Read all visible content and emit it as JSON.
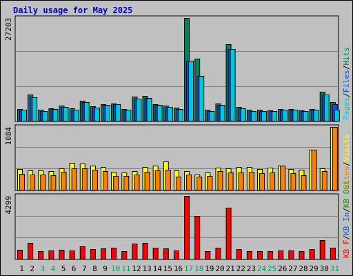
{
  "chart_data": {
    "type": "bar",
    "title": "Daily usage for May 2025",
    "categories": [
      "1",
      "2",
      "3",
      "4",
      "5",
      "6",
      "7",
      "8",
      "9",
      "10",
      "11",
      "12",
      "13",
      "14",
      "15",
      "16",
      "17",
      "18",
      "19",
      "20",
      "21",
      "22",
      "23",
      "24",
      "25",
      "26",
      "27",
      "28",
      "29",
      "30",
      "31"
    ],
    "weekend_days": [
      3,
      4,
      10,
      11,
      17,
      18,
      24,
      25,
      31
    ],
    "grid": true,
    "panels": [
      {
        "id": "hits",
        "max_label": "27203",
        "ymax": 27203,
        "legend": [
          {
            "text": "Pages",
            "color": "#00c8d8"
          },
          {
            "text": "Files",
            "color": "#0050ff"
          },
          {
            "text": "Hits",
            "color": "#008060"
          }
        ],
        "series": [
          {
            "name": "Hits",
            "color": "#008060",
            "values": [
              3300,
              7000,
              3100,
              3400,
              4200,
              3400,
              5500,
              3900,
              4600,
              4800,
              3200,
              6500,
              6700,
              4600,
              4100,
              3600,
              27203,
              16500,
              3000,
              4800,
              20300,
              3800,
              3000,
              3000,
              2900,
              3300,
              3200,
              2900,
              3300,
              7800,
              5000
            ]
          },
          {
            "name": "Files",
            "color": "#0050ff",
            "values": [
              3000,
              6400,
              2800,
              3200,
              3800,
              3100,
              5100,
              3700,
              4300,
              4500,
              3000,
              6000,
              6100,
              4300,
              3800,
              3300,
              16000,
              12000,
              2800,
              4400,
              19000,
              3500,
              2800,
              2800,
              2700,
              3100,
              3000,
              2700,
              3000,
              7100,
              4600
            ]
          },
          {
            "name": "Pages",
            "color": "#00c8d8",
            "values": [
              3000,
              6400,
              2800,
              3200,
              3800,
              3100,
              5100,
              3700,
              4300,
              4500,
              3000,
              6000,
              6100,
              4300,
              3800,
              3300,
              16000,
              12000,
              2800,
              4400,
              19000,
              3500,
              2800,
              2800,
              2700,
              3100,
              3000,
              2700,
              3000,
              7100,
              3000
            ]
          }
        ]
      },
      {
        "id": "visits",
        "max_label": "1084",
        "ymax": 1084,
        "legend": [
          {
            "text": "Sites",
            "color": "#ff8000"
          },
          {
            "text": "Visits",
            "color": "#ffff00"
          }
        ],
        "series": [
          {
            "name": "Visits",
            "color": "#ffff00",
            "values": [
              370,
              345,
              340,
              330,
              380,
              470,
              460,
              420,
              400,
              320,
              310,
              330,
              400,
              420,
              490,
              340,
              330,
              270,
              310,
              390,
              380,
              400,
              400,
              360,
              390,
              430,
              370,
              350,
              700,
              380,
              1084
            ]
          },
          {
            "name": "Sites",
            "color": "#ff8000",
            "values": [
              280,
              270,
              270,
              260,
              320,
              380,
              380,
              350,
              330,
              250,
              250,
              270,
              320,
              340,
              350,
              230,
              270,
              230,
              250,
              330,
              310,
              310,
              320,
              290,
              310,
              430,
              300,
              260,
              700,
              330,
              1084
            ]
          }
        ]
      },
      {
        "id": "kbytes",
        "max_label": "4299",
        "ymax": 4299,
        "legend": [
          {
            "text": "KB F",
            "color": "#ff0000"
          },
          {
            "text": "KB In",
            "color": "#0060ff"
          },
          {
            "text": "KB Out",
            "color": "#00a000"
          }
        ],
        "series": [
          {
            "name": "KB F",
            "color": "#ff0000",
            "values": [
              650,
              1100,
              560,
              600,
              670,
              620,
              890,
              700,
              760,
              810,
              560,
              1070,
              1100,
              790,
              730,
              620,
              4299,
              2950,
              540,
              810,
              3500,
              690,
              560,
              580,
              560,
              610,
              630,
              540,
              700,
              1290,
              790
            ]
          }
        ]
      }
    ],
    "slash": "/"
  }
}
